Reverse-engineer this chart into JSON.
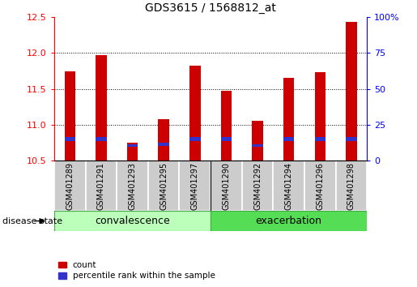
{
  "title": "GDS3615 / 1568812_at",
  "samples": [
    "GSM401289",
    "GSM401291",
    "GSM401293",
    "GSM401295",
    "GSM401297",
    "GSM401290",
    "GSM401292",
    "GSM401294",
    "GSM401296",
    "GSM401298"
  ],
  "count_values": [
    11.75,
    11.97,
    10.75,
    11.08,
    11.83,
    11.47,
    11.06,
    11.66,
    11.73,
    12.43
  ],
  "percentile_bottom": [
    10.77,
    10.77,
    10.69,
    10.71,
    10.77,
    10.77,
    10.69,
    10.77,
    10.77,
    10.77
  ],
  "percentile_heights": [
    0.055,
    0.055,
    0.04,
    0.04,
    0.055,
    0.055,
    0.04,
    0.055,
    0.055,
    0.055
  ],
  "y_min": 10.5,
  "y_max": 12.5,
  "y_ticks": [
    10.5,
    11.0,
    11.5,
    12.0,
    12.5
  ],
  "y2_ticks": [
    0,
    25,
    50,
    75,
    100
  ],
  "bar_color_red": "#cc0000",
  "bar_color_blue": "#3333cc",
  "group_label_colors": [
    "#bbffbb",
    "#55dd55"
  ],
  "group_labels": [
    "convalescence",
    "exacerbation"
  ],
  "legend_count": "count",
  "legend_percentile": "percentile rank within the sample",
  "disease_state_label": "disease state",
  "sample_bg_color": "#cccccc",
  "title_fontsize": 10,
  "tick_fontsize": 8,
  "bar_width": 0.35,
  "n_convalescence": 5
}
